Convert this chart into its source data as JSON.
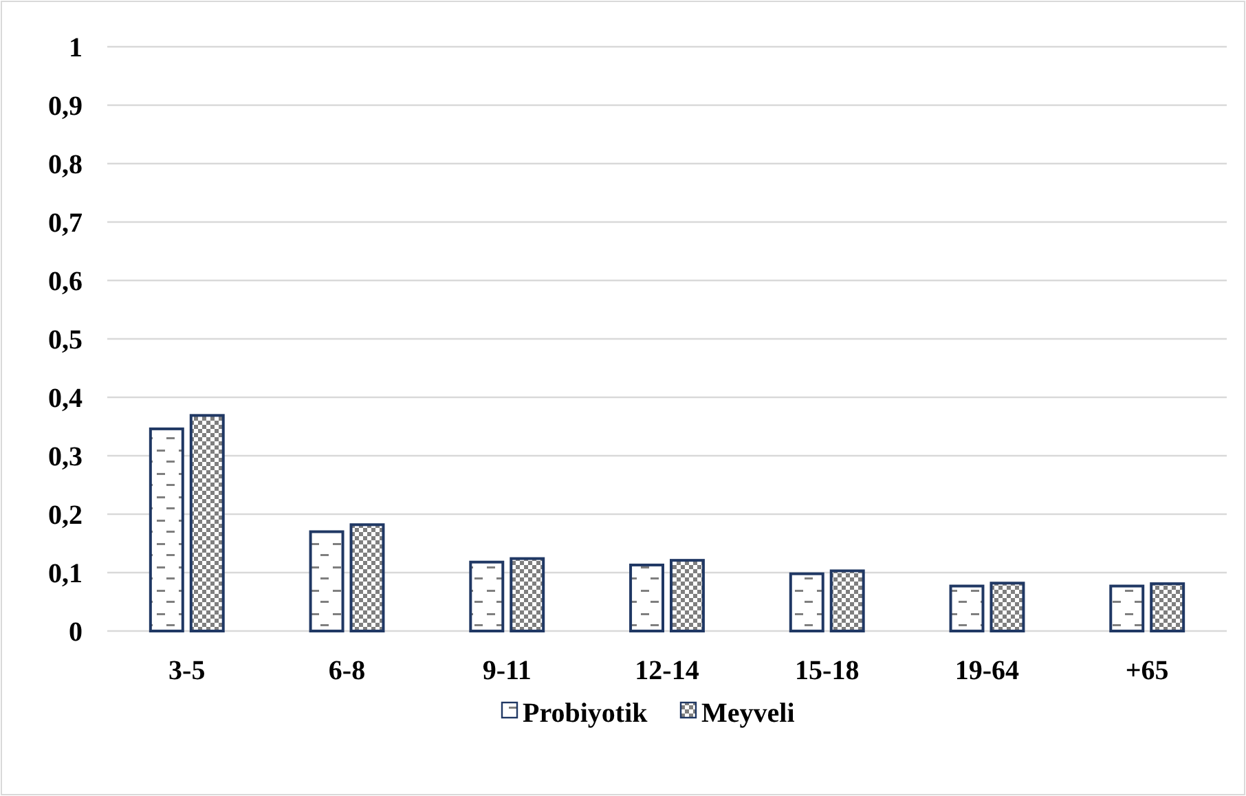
{
  "chart_data": {
    "type": "bar",
    "categories": [
      "3-5",
      "6-8",
      "9-11",
      "12-14",
      "15-18",
      "19-64",
      "+65"
    ],
    "series": [
      {
        "name": "Probiyotik",
        "color": "#203864",
        "values": [
          0.346,
          0.17,
          0.118,
          0.113,
          0.098,
          0.077,
          0.077
        ]
      },
      {
        "name": "Meyveli",
        "color": "#203864",
        "values": [
          0.369,
          0.182,
          0.124,
          0.121,
          0.103,
          0.082,
          0.081
        ]
      }
    ],
    "ylim": [
      0,
      1
    ],
    "yticks": [
      0,
      {
        "value": 0.1,
        "label": "0,1"
      },
      {
        "value": 0.2,
        "label": "0,2"
      },
      {
        "value": 0.3,
        "label": "0,3"
      },
      {
        "value": 0.4,
        "label": "0,4"
      },
      {
        "value": 0.5,
        "label": "0,5"
      },
      {
        "value": 0.6,
        "label": "0,6"
      },
      {
        "value": 0.7,
        "label": "0,7"
      },
      {
        "value": 0.8,
        "label": "0,8"
      },
      {
        "value": 0.9,
        "label": "0,9"
      },
      1
    ],
    "grid": "y",
    "legend": "bottom"
  }
}
